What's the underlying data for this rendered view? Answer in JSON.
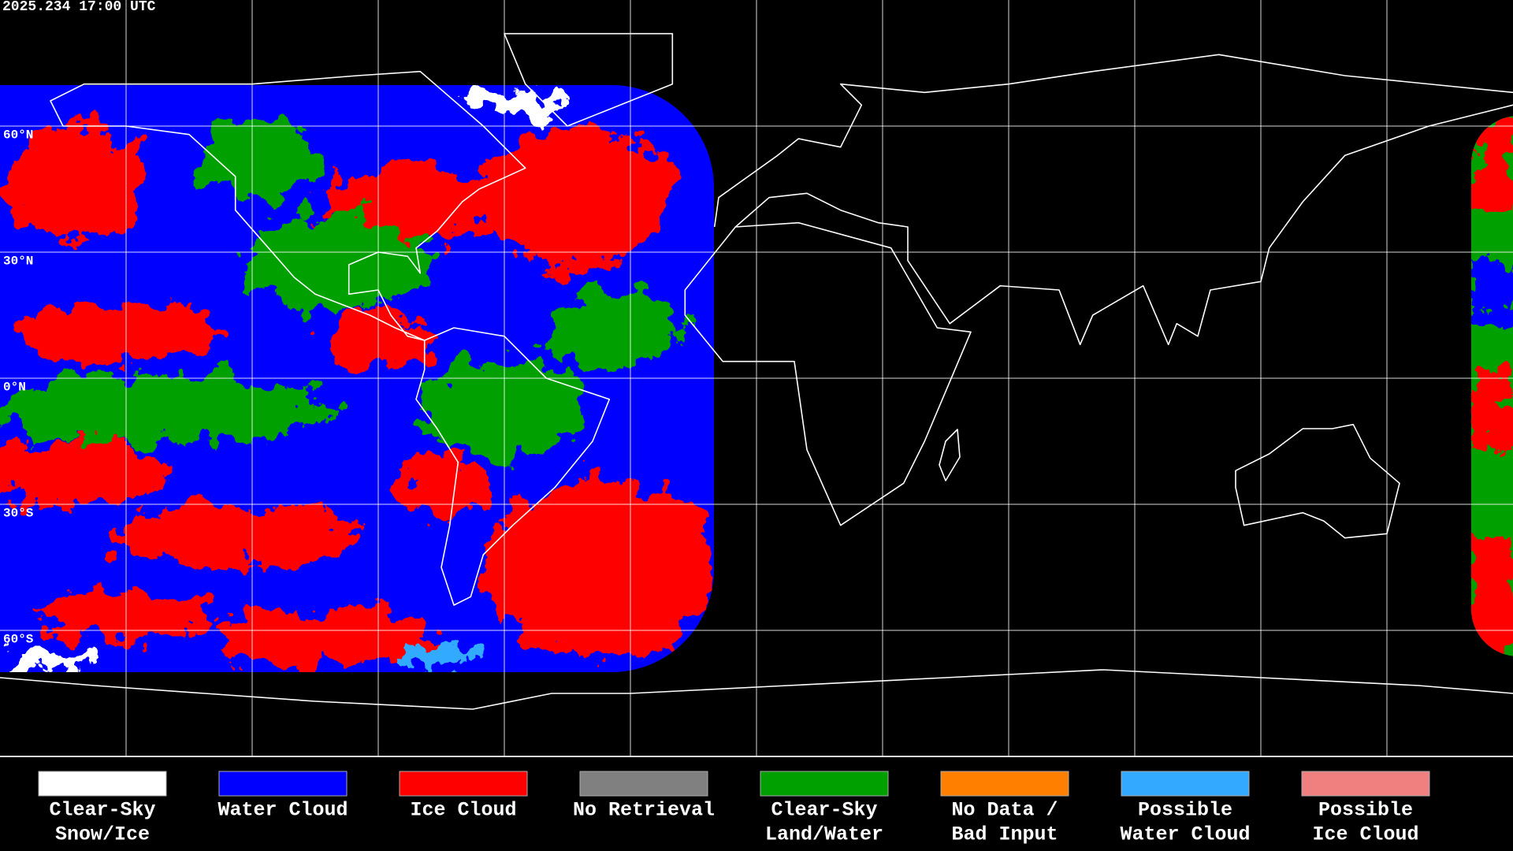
{
  "header": {
    "timestamp": "2025.234 17:00 UTC"
  },
  "map": {
    "latitude_labels": [
      "60°N",
      "30°N",
      "0°N",
      "30°S",
      "60°S"
    ]
  },
  "legend": {
    "items": [
      {
        "lines": [
          "Clear-Sky",
          "Snow/Ice"
        ],
        "color": "#ffffff"
      },
      {
        "lines": [
          "Water Cloud"
        ],
        "color": "#0000ff"
      },
      {
        "lines": [
          "Ice Cloud"
        ],
        "color": "#ff0000"
      },
      {
        "lines": [
          "No Retrieval"
        ],
        "color": "#808080"
      },
      {
        "lines": [
          "Clear-Sky",
          "Land/Water"
        ],
        "color": "#00a000"
      },
      {
        "lines": [
          "No Data /",
          "Bad Input"
        ],
        "color": "#ff8000"
      },
      {
        "lines": [
          "Possible",
          "Water Cloud"
        ],
        "color": "#33aaff"
      },
      {
        "lines": [
          "Possible",
          "Ice Cloud"
        ],
        "color": "#f08080"
      }
    ]
  }
}
